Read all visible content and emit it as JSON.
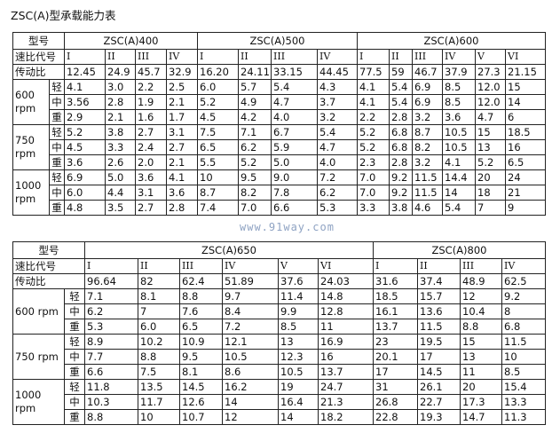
{
  "title": "ZSC(A)型承载能力表",
  "watermark": "www.91way.com",
  "labels": {
    "model": "型号",
    "ratio_code": "速比代号",
    "ratio": "传动比",
    "speeds": [
      "600 rpm",
      "750 rpm",
      "1000 rpm"
    ],
    "loads": [
      "轻",
      "中",
      "重"
    ]
  },
  "table1": {
    "models": [
      {
        "name": "ZSC(A)400",
        "codes": [
          "I",
          "II",
          "III",
          "IV"
        ],
        "ratios": [
          "12.45",
          "24.9",
          "45.7",
          "32.9"
        ]
      },
      {
        "name": "ZSC(A)500",
        "codes": [
          "I",
          "II",
          "III",
          "IV"
        ],
        "ratios": [
          "16.20",
          "24.11",
          "33.15",
          "44.45"
        ]
      },
      {
        "name": "ZSC(A)600",
        "codes": [
          "I",
          "II",
          "III",
          "IV",
          "V",
          "VI"
        ],
        "ratios": [
          "77.5",
          "59",
          "46.7",
          "37.9",
          "27.3",
          "21.15"
        ]
      }
    ],
    "rows": [
      [
        "4.1",
        "3.0",
        "2.2",
        "2.5",
        "6.0",
        "5.7",
        "5.4",
        "4.3",
        "4.1",
        "5.4",
        "6.9",
        "8.5",
        "12.0",
        "15"
      ],
      [
        "3.56",
        "2.8",
        "1.9",
        "2.1",
        "5.2",
        "4.9",
        "4.7",
        "3.7",
        "4.1",
        "5.4",
        "6.9",
        "8.5",
        "12.0",
        "14"
      ],
      [
        "2.9",
        "2.1",
        "1.6",
        "1.7",
        "4.5",
        "4.2",
        "4.0",
        "3.2",
        "2.2",
        "2.8",
        "3.2",
        "3.6",
        "4.7",
        "6"
      ],
      [
        "5.2",
        "3.8",
        "2.7",
        "3.1",
        "7.5",
        "7.1",
        "6.7",
        "5.4",
        "5.2",
        "6.8",
        "8.7",
        "10.5",
        "15",
        "18.5"
      ],
      [
        "4.5",
        "3.3",
        "2.4",
        "2.7",
        "6.5",
        "6.2",
        "5.9",
        "4.7",
        "5.2",
        "6.8",
        "8.2",
        "10.5",
        "13",
        "16"
      ],
      [
        "3.6",
        "2.6",
        "2.0",
        "2.1",
        "5.5",
        "5.2",
        "5.0",
        "4.0",
        "2.3",
        "2.8",
        "3.2",
        "4.1",
        "5.2",
        "6.5"
      ],
      [
        "6.9",
        "5.0",
        "3.6",
        "4.1",
        "10",
        "9.5",
        "9.0",
        "7.2",
        "7.0",
        "9.2",
        "11.5",
        "14.4",
        "20",
        "24"
      ],
      [
        "6.0",
        "4.4",
        "3.1",
        "3.6",
        "8.7",
        "8.2",
        "7.8",
        "6.2",
        "7.0",
        "9.2",
        "11.5",
        "14",
        "18",
        "21"
      ],
      [
        "4.8",
        "3.5",
        "2.7",
        "2.8",
        "7.4",
        "7.0",
        "6.6",
        "5.3",
        "3.3",
        "3.8",
        "4.6",
        "5.4",
        "7",
        "9"
      ]
    ]
  },
  "table2": {
    "models": [
      {
        "name": "ZSC(A)650",
        "codes": [
          "I",
          "II",
          "III",
          "IV",
          "V",
          "VI"
        ],
        "ratios": [
          "96.64",
          "82",
          "62.4",
          "51.89",
          "37.6",
          "24.03"
        ]
      },
      {
        "name": "ZSC(A)800",
        "codes": [
          "I",
          "II",
          "III",
          "IV"
        ],
        "ratios": [
          "31.6",
          "37.4",
          "48.9",
          "62.5"
        ]
      }
    ],
    "rows": [
      [
        "7.1",
        "8.1",
        "8.8",
        "9.7",
        "11.4",
        "14.8",
        "18.5",
        "15.7",
        "12",
        "9.2"
      ],
      [
        "6.2",
        "7",
        "7.6",
        "8.4",
        "9.9",
        "12.8",
        "16.1",
        "13.6",
        "10.4",
        "8"
      ],
      [
        "5.3",
        "6.0",
        "6.5",
        "7.2",
        "8.5",
        "11",
        "13.7",
        "11.5",
        "8.8",
        "6.8"
      ],
      [
        "8.9",
        "10.2",
        "10.9",
        "12.1",
        "13",
        "16.9",
        "23",
        "19.5",
        "15",
        "11.5"
      ],
      [
        "7.7",
        "8.8",
        "9.5",
        "10.5",
        "12.3",
        "16",
        "20.1",
        "17",
        "13",
        "10"
      ],
      [
        "6.6",
        "7.5",
        "8.1",
        "8.6",
        "10.5",
        "13.7",
        "17",
        "14.5",
        "11",
        "8.5"
      ],
      [
        "11.8",
        "13.5",
        "14.5",
        "16.2",
        "19",
        "24.7",
        "31",
        "26.1",
        "20",
        "15.4"
      ],
      [
        "10.3",
        "11.7",
        "12.6",
        "14",
        "16.4",
        "21.3",
        "26.8",
        "22.7",
        "17.3",
        "13.3"
      ],
      [
        "8.8",
        "10",
        "10.7",
        "12",
        "14",
        "18.2",
        "22.8",
        "19.3",
        "14.7",
        "11.3"
      ]
    ]
  }
}
